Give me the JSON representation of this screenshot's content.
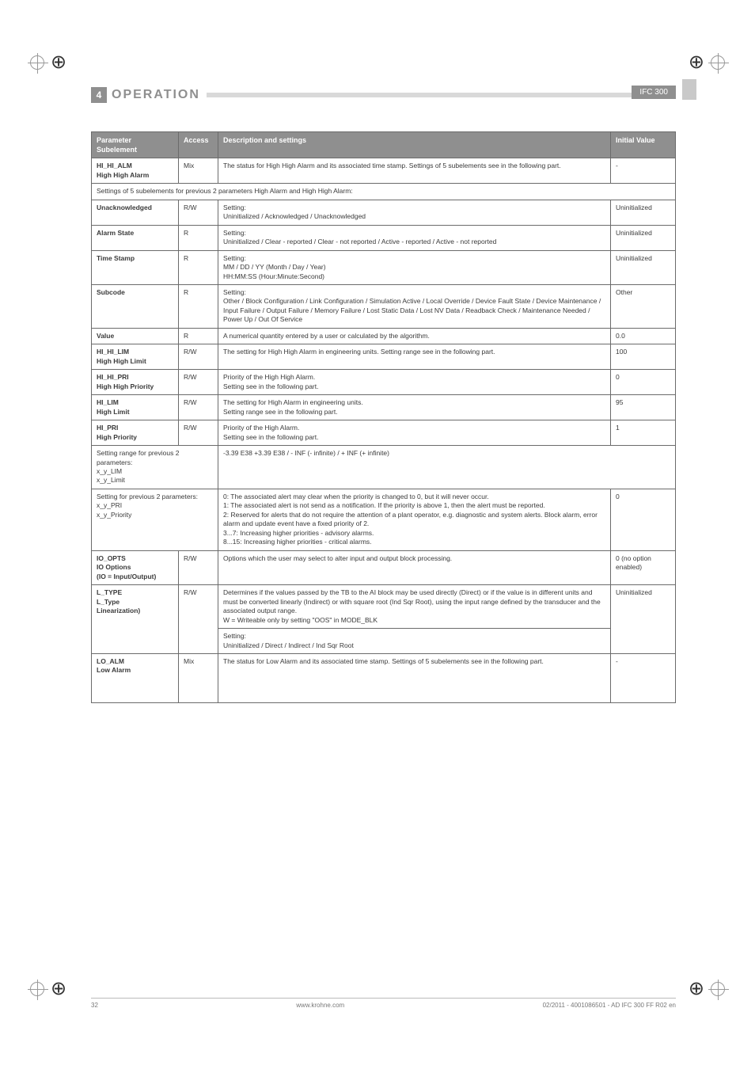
{
  "theme": {
    "header_gray": "#8f8f8f",
    "line_gray": "#d9d9d9",
    "border_gray": "#6b6b6b",
    "text": "#3a3a3a"
  },
  "header": {
    "section_number": "4",
    "title": "OPERATION",
    "doc_code": "IFC 300"
  },
  "table": {
    "columns": [
      "Parameter\nSubelement",
      "Access",
      "Description and settings",
      "Initial Value"
    ],
    "rows": [
      {
        "param": "HI_HI_ALM",
        "sub": "High High Alarm",
        "access": "Mix",
        "desc": "The status for High High Alarm and its associated time stamp. Settings of 5 subelements see in the following part.",
        "init": "-"
      },
      {
        "section": "Settings of 5 subelements for previous 2 parameters High Alarm and High High Alarm:"
      },
      {
        "param": "Unacknowledged",
        "access": "R/W",
        "desc": "Setting:\nUninitialized / Acknowledged / Unacknowledged",
        "init": "Uninitialized"
      },
      {
        "param": "Alarm State",
        "access": "R",
        "desc": "Setting:\nUninitialized / Clear - reported / Clear - not reported / Active - reported / Active - not reported",
        "init": "Uninitialized"
      },
      {
        "param": "Time Stamp",
        "access": "R",
        "desc": "Setting:\nMM / DD / YY (Month / Day / Year)\nHH:MM:SS (Hour:Minute:Second)",
        "init": "Uninitialized"
      },
      {
        "param": "Subcode",
        "access": "R",
        "desc": "Setting:\nOther / Block Configuration / Link Configuration / Simulation Active / Local Override / Device Fault State / Device Maintenance / Input Failure / Output Failure / Memory Failure / Lost Static Data / Lost NV Data / Readback Check / Maintenance Needed / Power Up / Out Of Service",
        "init": "Other"
      },
      {
        "param": "Value",
        "access": "R",
        "desc": "A numerical quantity entered by a user or calculated by the algorithm.",
        "init": "0.0"
      },
      {
        "param": "HI_HI_LIM",
        "sub": "High High Limit",
        "access": "R/W",
        "desc": "The setting for High High Alarm in engineering units. Setting range see in the following part.",
        "init": "100"
      },
      {
        "param": "HI_HI_PRI",
        "sub": "High High Priority",
        "access": "R/W",
        "desc": "Priority of the High High Alarm.\nSetting see in the following part.",
        "init": "0"
      },
      {
        "param": "HI_LIM",
        "sub": "High Limit",
        "access": "R/W",
        "desc": "The setting for High Alarm in engineering units.\nSetting range see in the following part.",
        "init": "95"
      },
      {
        "param": "HI_PRI",
        "sub": "High Priority",
        "access": "R/W",
        "desc": "Priority of the High Alarm.\nSetting see in the following part.",
        "init": "1"
      },
      {
        "span": "Setting range for previous 2 parameters:\nx_y_LIM\nx_y_Limit",
        "desc": "-3.39 E38   +3.39 E38 / - INF (- infinite) / + INF (+ infinite)"
      },
      {
        "span": "Setting for previous 2 parameters:\nx_y_PRI\nx_y_Priority",
        "desc": "0: The associated alert may clear when the priority is changed to 0, but it will never occur.\n1: The associated alert is not send as a notification. If the priority is above 1, then the alert must be reported.\n2: Reserved for alerts that do not require the attention of a plant operator, e.g. diagnostic and system alerts. Block alarm, error alarm and update event have a fixed priority of 2.\n3...7: Increasing higher priorities - advisory alarms.\n8...15: Increasing higher priorities - critical alarms.",
        "init": "0"
      },
      {
        "param": "IO_OPTS",
        "sub": "IO Options\n(IO = Input/Output)",
        "access": "R/W",
        "desc": "Options which the user may select to alter input and output block processing.",
        "init": "0 (no option enabled)"
      },
      {
        "param": "L_TYPE",
        "sub": "L_Type\nLinearization)",
        "access": "R/W",
        "desc": "Determines if the values passed by the TB to the AI block may be used directly (Direct) or if the value is in different units and must be converted linearly (Indirect) or with square root (Ind Sqr Root), using the input range defined by the transducer and the associated output range.\nW = Writeable only by setting \"OOS\" in MODE_BLK",
        "init": "Uninitialized",
        "extra": "Setting:\nUninitialized / Direct / Indirect / Ind Sqr Root"
      },
      {
        "param": "LO_ALM",
        "sub": "Low Alarm",
        "access": "Mix",
        "desc": "The status for Low Alarm and its associated time stamp. Settings of 5 subelements see in the following part.",
        "init": "-",
        "tall": true
      }
    ]
  },
  "footer": {
    "page": "32",
    "site": "www.krohne.com",
    "rev": "02/2011 - 4001086501 - AD IFC 300 FF R02 en"
  }
}
